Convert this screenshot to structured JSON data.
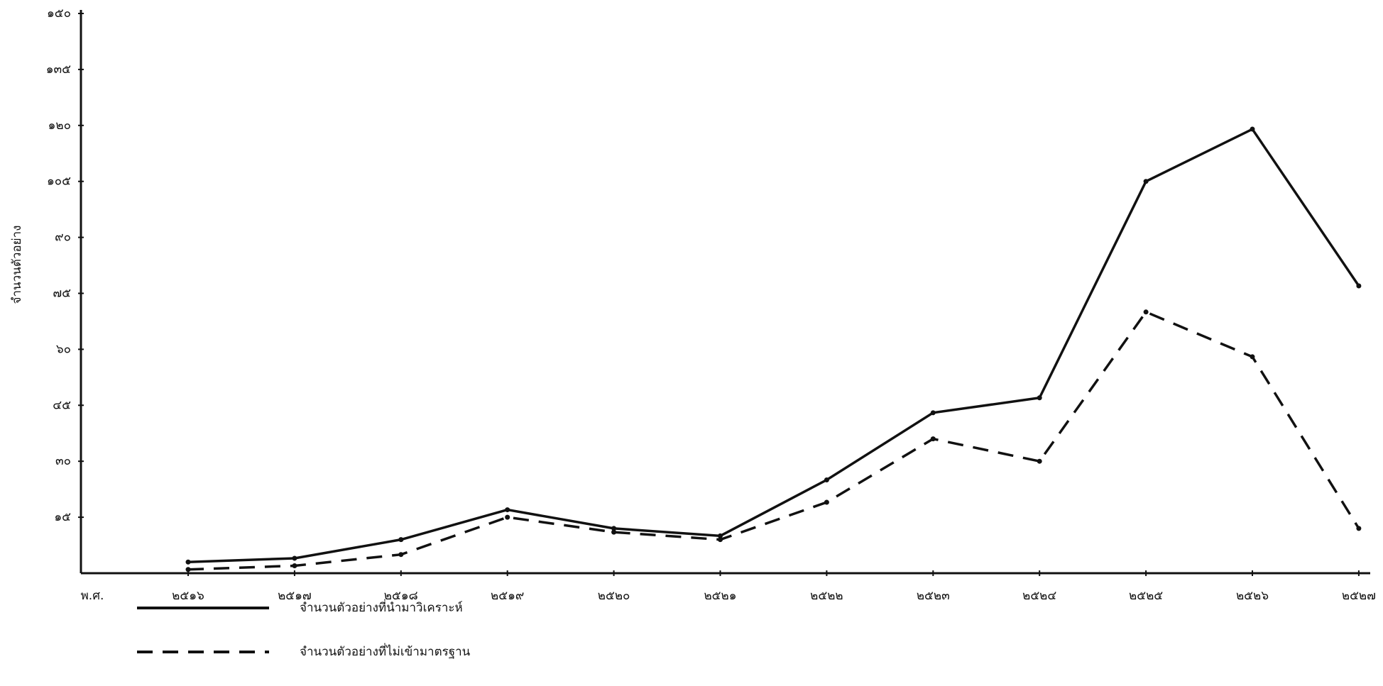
{
  "chart_data": {
    "type": "line",
    "y_label": "จำนวนตัวอย่าง",
    "x_label": "พ.ศ.",
    "categories": [
      "๒๕๑๖",
      "๒๕๑๗",
      "๒๕๑๘",
      "๒๕๑๙",
      "๒๕๒๐",
      "๒๕๒๑",
      "๒๕๒๒",
      "๒๕๒๓",
      "๒๕๒๔",
      "๒๕๒๕",
      "๒๕๒๖",
      "๒๕๒๗"
    ],
    "series": [
      {
        "name": "จำนวนตัวอย่างที่นำมาวิเคราะห์",
        "color": "#111111",
        "line_style": "solid",
        "values": [
          3,
          4,
          9,
          17,
          12,
          10,
          25,
          43,
          47,
          105,
          119,
          77
        ]
      },
      {
        "name": "จำนวนตัวอย่างที่ไม่เข้ามาตรฐาน",
        "color": "#111111",
        "line_style": "dashed",
        "values": [
          1,
          2,
          5,
          15,
          11,
          9,
          19,
          36,
          30,
          70,
          58,
          12
        ]
      }
    ],
    "ylim": [
      0,
      150
    ],
    "yticks": [
      {
        "value": 15,
        "label": "๑๕"
      },
      {
        "value": 30,
        "label": "๓๐"
      },
      {
        "value": 45,
        "label": "๔๕"
      },
      {
        "value": 60,
        "label": "๖๐"
      },
      {
        "value": 75,
        "label": "๗๕"
      },
      {
        "value": 90,
        "label": "๙๐"
      },
      {
        "value": 105,
        "label": "๑๐๕"
      },
      {
        "value": 120,
        "label": "๑๒๐"
      },
      {
        "value": 135,
        "label": "๑๓๕"
      },
      {
        "value": 150,
        "label": "๑๕๐"
      }
    ],
    "grid": false,
    "legend": "bottom-left"
  }
}
